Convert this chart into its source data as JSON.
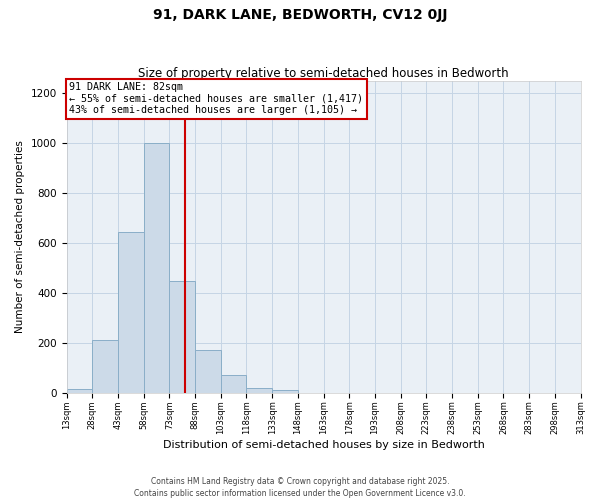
{
  "title": "91, DARK LANE, BEDWORTH, CV12 0JJ",
  "subtitle": "Size of property relative to semi-detached houses in Bedworth",
  "xlabel": "Distribution of semi-detached houses by size in Bedworth",
  "ylabel": "Number of semi-detached properties",
  "bin_edges": [
    13,
    28,
    43,
    58,
    73,
    88,
    103,
    118,
    133,
    148,
    163,
    178,
    193,
    208,
    223,
    238,
    253,
    268,
    283,
    298,
    313
  ],
  "bin_counts": [
    15,
    210,
    645,
    1000,
    450,
    170,
    70,
    20,
    10,
    0,
    0,
    0,
    0,
    0,
    0,
    0,
    0,
    0,
    0,
    0
  ],
  "bar_facecolor": "#ccdae8",
  "bar_edgecolor": "#8aaec8",
  "property_value": 82,
  "vline_color": "#cc0000",
  "annotation_line1": "91 DARK LANE: 82sqm",
  "annotation_line2": "← 55% of semi-detached houses are smaller (1,417)",
  "annotation_line3": "43% of semi-detached houses are larger (1,105) →",
  "annotation_box_edgecolor": "#cc0000",
  "background_color": "#ffffff",
  "plot_bg_color": "#eaf0f6",
  "grid_color": "#c5d5e5",
  "ylim": [
    0,
    1250
  ],
  "yticks": [
    0,
    200,
    400,
    600,
    800,
    1000,
    1200
  ],
  "xtick_labels": [
    "13sqm",
    "28sqm",
    "43sqm",
    "58sqm",
    "73sqm",
    "88sqm",
    "103sqm",
    "118sqm",
    "133sqm",
    "148sqm",
    "163sqm",
    "178sqm",
    "193sqm",
    "208sqm",
    "223sqm",
    "238sqm",
    "253sqm",
    "268sqm",
    "283sqm",
    "298sqm",
    "313sqm"
  ],
  "footer_line1": "Contains HM Land Registry data © Crown copyright and database right 2025.",
  "footer_line2": "Contains public sector information licensed under the Open Government Licence v3.0."
}
